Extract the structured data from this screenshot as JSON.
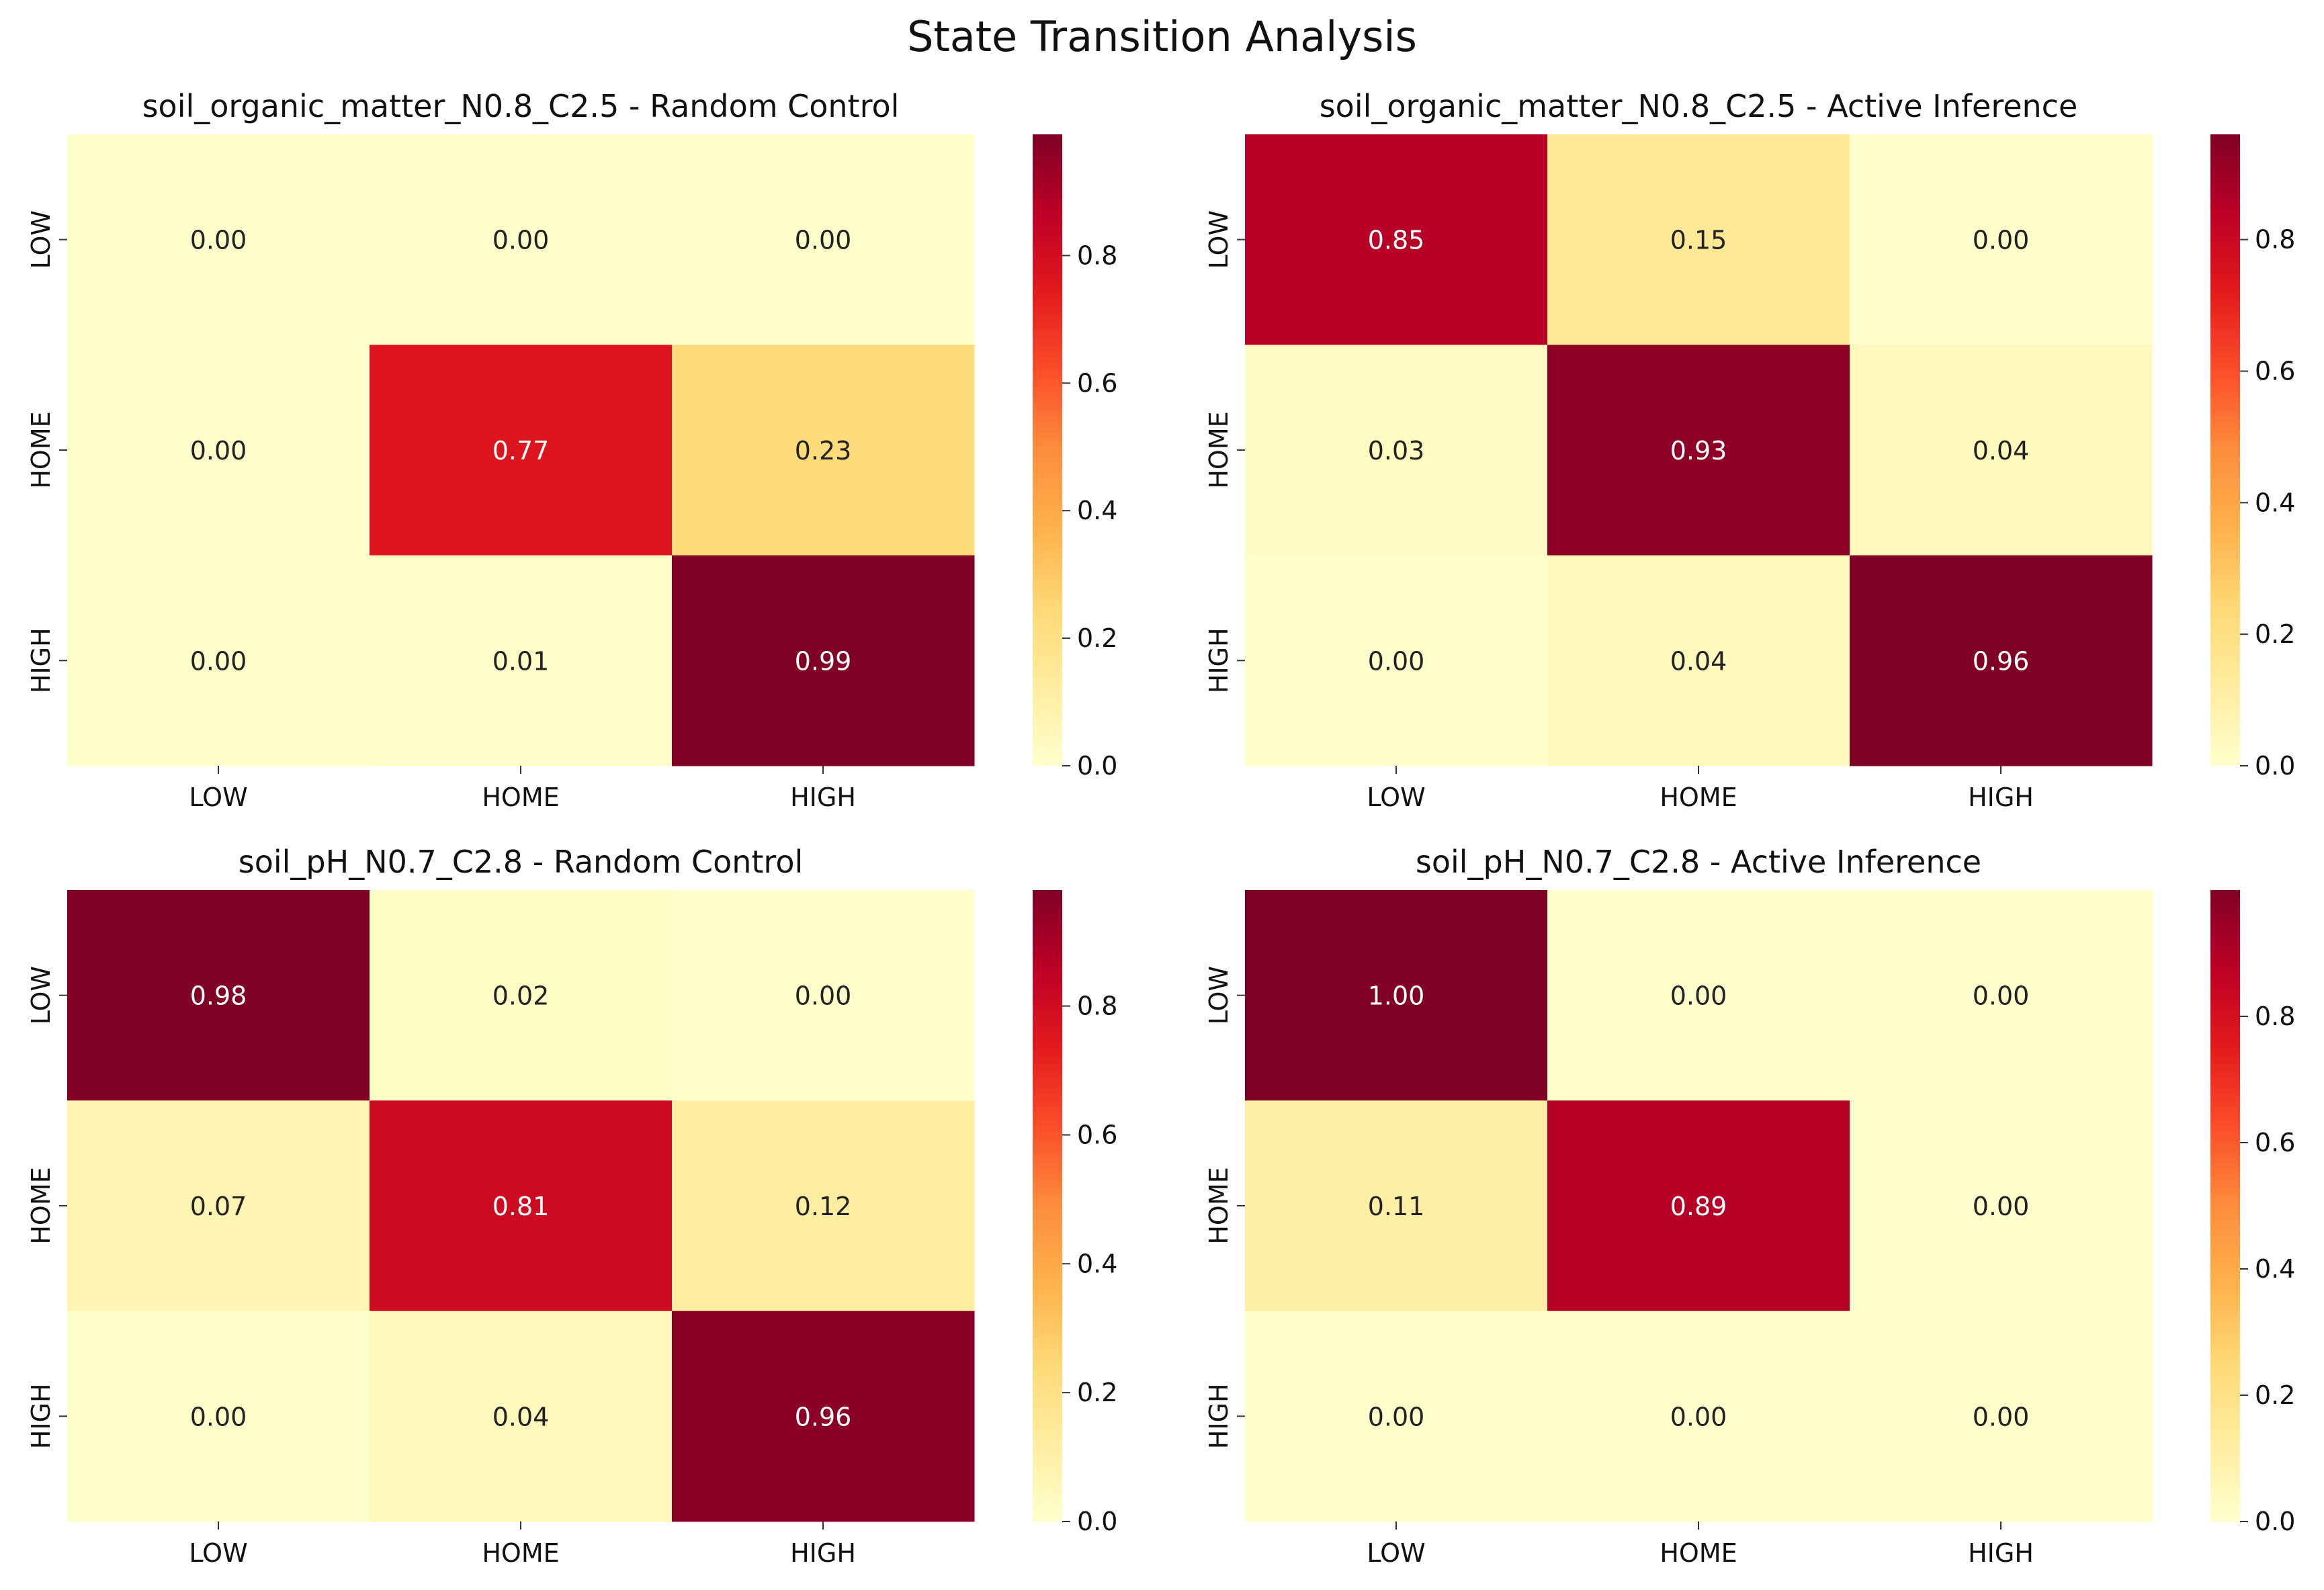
{
  "figure_title": "State Transition Analysis",
  "colormap": {
    "name": "YlOrRd",
    "stops": [
      "#ffffcc",
      "#ffeda0",
      "#fed976",
      "#feb24c",
      "#fd8d3c",
      "#fc4e2a",
      "#e31a1c",
      "#bd0026",
      "#800026"
    ]
  },
  "chart_data": [
    {
      "type": "heatmap",
      "title": "soil_organic_matter_N0.8_C2.5 - Random Control",
      "x_categories": [
        "LOW",
        "HOME",
        "HIGH"
      ],
      "y_categories": [
        "LOW",
        "HOME",
        "HIGH"
      ],
      "values": [
        [
          0.0,
          0.0,
          0.0
        ],
        [
          0.0,
          0.77,
          0.23
        ],
        [
          0.0,
          0.01,
          0.99
        ]
      ],
      "colorbar": {
        "range": [
          0,
          0.99
        ],
        "ticks": [
          "0.0",
          "0.2",
          "0.4",
          "0.6",
          "0.8"
        ]
      }
    },
    {
      "type": "heatmap",
      "title": "soil_organic_matter_N0.8_C2.5 - Active Inference",
      "x_categories": [
        "LOW",
        "HOME",
        "HIGH"
      ],
      "y_categories": [
        "LOW",
        "HOME",
        "HIGH"
      ],
      "values": [
        [
          0.85,
          0.15,
          0.0
        ],
        [
          0.03,
          0.93,
          0.04
        ],
        [
          0.0,
          0.04,
          0.96
        ]
      ],
      "colorbar": {
        "range": [
          0,
          0.96
        ],
        "ticks": [
          "0.0",
          "0.2",
          "0.4",
          "0.6",
          "0.8"
        ]
      }
    },
    {
      "type": "heatmap",
      "title": "soil_pH_N0.7_C2.8 - Random Control",
      "x_categories": [
        "LOW",
        "HOME",
        "HIGH"
      ],
      "y_categories": [
        "LOW",
        "HOME",
        "HIGH"
      ],
      "values": [
        [
          0.98,
          0.02,
          0.0
        ],
        [
          0.07,
          0.81,
          0.12
        ],
        [
          0.0,
          0.04,
          0.96
        ]
      ],
      "colorbar": {
        "range": [
          0,
          0.98
        ],
        "ticks": [
          "0.0",
          "0.2",
          "0.4",
          "0.6",
          "0.8"
        ]
      }
    },
    {
      "type": "heatmap",
      "title": "soil_pH_N0.7_C2.8 - Active Inference",
      "x_categories": [
        "LOW",
        "HOME",
        "HIGH"
      ],
      "y_categories": [
        "LOW",
        "HOME",
        "HIGH"
      ],
      "values": [
        [
          1.0,
          0.0,
          0.0
        ],
        [
          0.11,
          0.89,
          0.0
        ],
        [
          0.0,
          0.0,
          0.0
        ]
      ],
      "colorbar": {
        "range": [
          0,
          1.0
        ],
        "ticks": [
          "0.0",
          "0.2",
          "0.4",
          "0.6",
          "0.8"
        ]
      }
    }
  ]
}
